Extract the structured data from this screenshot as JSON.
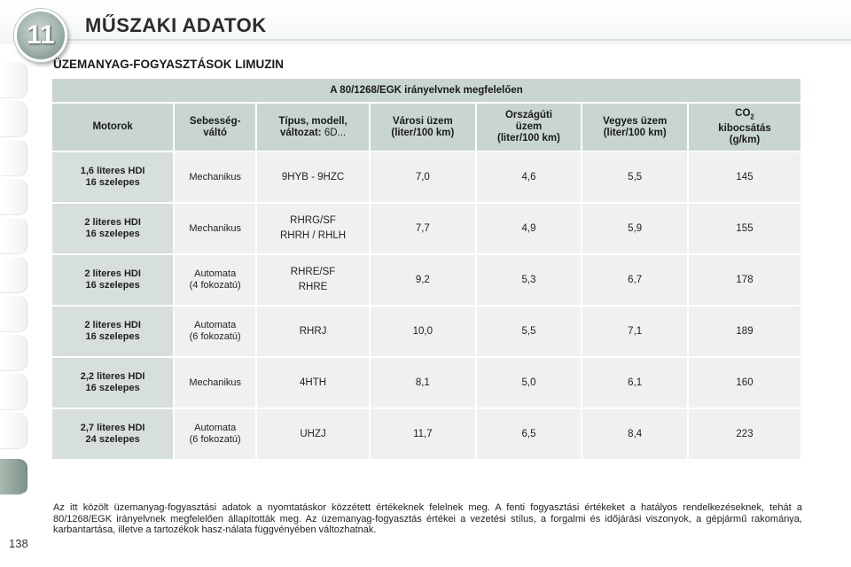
{
  "header": {
    "chapter_number": "11",
    "chapter_title": "MŰSZAKI ADATOK"
  },
  "page": {
    "number": "138"
  },
  "section_title": "ÜZEMANYAG-FOGYASZTÁSOK LIMUZIN",
  "table": {
    "directive": "A 80/1268/EGK irányelvnek megfelelően",
    "headers": {
      "engine": "Motorok",
      "gearbox_1": "Sebesség-",
      "gearbox_2": "váltó",
      "type_1": "Típus, modell,",
      "type_2_bold": "változat:",
      "type_2_normal": " 6D...",
      "urban_1": "Városi üzem",
      "urban_2": "(liter/100 km)",
      "extra_1": "Országúti",
      "extra_2": "üzem",
      "extra_3": "(liter/100 km)",
      "mixed_1": "Vegyes üzem",
      "mixed_2": "(liter/100 km)",
      "co2_1": "CO",
      "co2_sub": "2",
      "co2_2": "kibocsátás",
      "co2_3": "(g/km)"
    },
    "rows": [
      {
        "engine_1": "1,6 literes HDI",
        "engine_2": "16 szelepes",
        "gearbox_1": "Mechanikus",
        "gearbox_2": "",
        "type_1": "9HYB - 9HZC",
        "type_2": "",
        "urban": "7,0",
        "extra": "4,6",
        "mixed": "5,5",
        "co2": "145"
      },
      {
        "engine_1": "2 literes HDI",
        "engine_2": "16 szelepes",
        "gearbox_1": "Mechanikus",
        "gearbox_2": "",
        "type_1": "RHRG/SF",
        "type_2": "RHRH / RHLH",
        "urban": "7,7",
        "extra": "4,9",
        "mixed": "5,9",
        "co2": "155"
      },
      {
        "engine_1": "2 literes HDI",
        "engine_2": "16 szelepes",
        "gearbox_1": "Automata",
        "gearbox_2": "(4 fokozatú)",
        "type_1": "RHRE/SF",
        "type_2": "RHRE",
        "urban": "9,2",
        "extra": "5,3",
        "mixed": "6,7",
        "co2": "178"
      },
      {
        "engine_1": "2 literes HDI",
        "engine_2": "16 szelepes",
        "gearbox_1": "Automata",
        "gearbox_2": "(6 fokozatú)",
        "type_1": "RHRJ",
        "type_2": "",
        "urban": "10,0",
        "extra": "5,5",
        "mixed": "7,1",
        "co2": "189"
      },
      {
        "engine_1": "2,2 literes HDI",
        "engine_2": "16 szelepes",
        "gearbox_1": "Mechanikus",
        "gearbox_2": "",
        "type_1": "4HTH",
        "type_2": "",
        "urban": "8,1",
        "extra": "5,0",
        "mixed": "6,1",
        "co2": "160"
      },
      {
        "engine_1": "2,7 literes HDI",
        "engine_2": "24 szelepes",
        "gearbox_1": "Automata",
        "gearbox_2": "(6 fokozatú)",
        "type_1": "UHZJ",
        "type_2": "",
        "urban": "11,7",
        "extra": "6,5",
        "mixed": "8,4",
        "co2": "223"
      }
    ]
  },
  "footnote": "Az itt közölt üzemanyag-fogyasztási adatok a nyomtatáskor közzétett értékeknek felelnek meg. A fenti fogyasztási értékeket a hatályos rendelkezéseknek, tehát a 80/1268/EGK irányelvnek megfelelően állapították meg. Az üzemanyag-fogyasztás értékei a vezetési stílus, a forgalmi és időjárási viszonyok, a gépjármű rakománya, karbantartása, illetve a tartozékok hasz-nálata függvényében változhatnak."
}
